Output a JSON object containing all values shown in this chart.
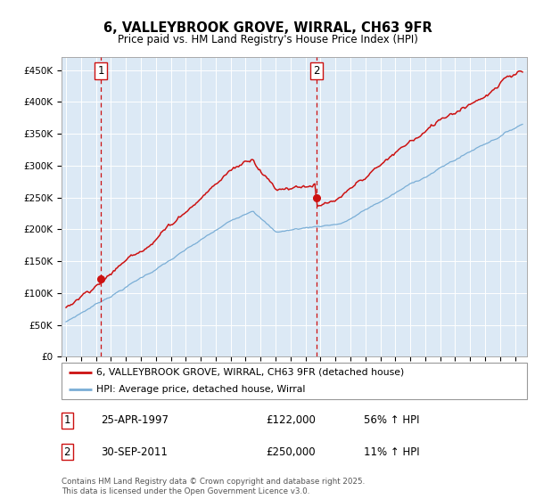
{
  "title": "6, VALLEYBROOK GROVE, WIRRAL, CH63 9FR",
  "subtitle": "Price paid vs. HM Land Registry's House Price Index (HPI)",
  "background_color": "#ffffff",
  "plot_bg_color": "#dce9f5",
  "hpi_line_color": "#7aaed6",
  "price_line_color": "#cc1111",
  "marker_color": "#cc1111",
  "vline_color": "#cc1111",
  "ylim": [
    0,
    470000
  ],
  "yticks": [
    0,
    50000,
    100000,
    150000,
    200000,
    250000,
    300000,
    350000,
    400000,
    450000
  ],
  "ytick_labels": [
    "£0",
    "£50K",
    "£100K",
    "£150K",
    "£200K",
    "£250K",
    "£300K",
    "£350K",
    "£400K",
    "£450K"
  ],
  "xmin": 1994.7,
  "xmax": 2025.8,
  "sale1_x": 1997.32,
  "sale1_price": 122000,
  "sale2_x": 2011.75,
  "sale2_price": 250000,
  "legend_entry1": "6, VALLEYBROOK GROVE, WIRRAL, CH63 9FR (detached house)",
  "legend_entry2": "HPI: Average price, detached house, Wirral",
  "table_rows": [
    {
      "num": "1",
      "date": "25-APR-1997",
      "price": "£122,000",
      "pct": "56% ↑ HPI"
    },
    {
      "num": "2",
      "date": "30-SEP-2011",
      "price": "£250,000",
      "pct": "11% ↑ HPI"
    }
  ],
  "footer": "Contains HM Land Registry data © Crown copyright and database right 2025.\nThis data is licensed under the Open Government Licence v3.0."
}
